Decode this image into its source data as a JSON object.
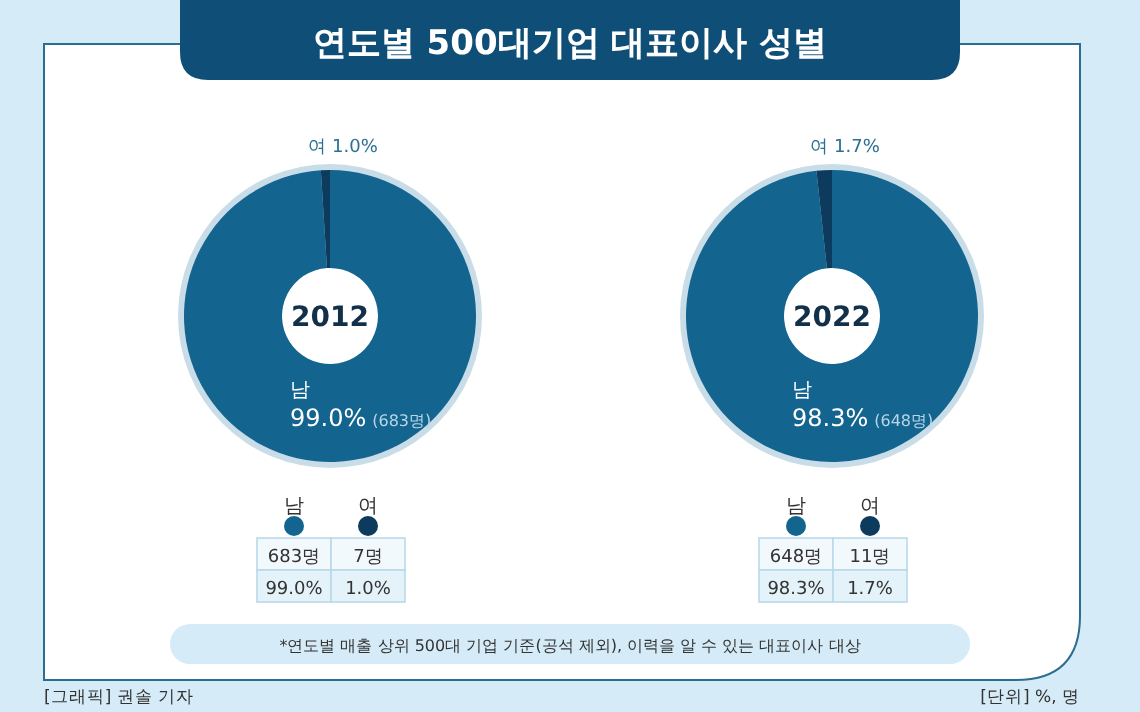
{
  "chart_data": [
    {
      "type": "donut",
      "title": "연도별 500대기업 대표이사 성별",
      "subtitle": "2012",
      "categories": [
        "남",
        "여"
      ],
      "values": [
        99.0,
        1.0
      ],
      "colors": [
        "#13648f",
        "#0d3b5e"
      ],
      "value_labels": [
        "99.0%",
        "1.0%"
      ],
      "annotations": [
        "(683명)",
        "683명",
        "7명",
        "99.0%",
        "1.0%",
        "*연도별 매출 상위 500대 기업 기준(공석 제외), 이력을 알 수 있는 대표이사 대상",
        "[그래픽] 권솔 기자",
        "[단위] %, 명"
      ]
    },
    {
      "type": "donut",
      "subtitle": "2022",
      "categories": [
        "남",
        "여"
      ],
      "values": [
        98.3,
        1.7
      ],
      "colors": [
        "#13648f",
        "#0d3b5e"
      ],
      "value_labels": [
        "98.3%",
        "1.7%"
      ],
      "annotations": [
        "(648명)",
        "648명",
        "11명",
        "98.3%",
        "1.7%"
      ]
    }
  ]
}
